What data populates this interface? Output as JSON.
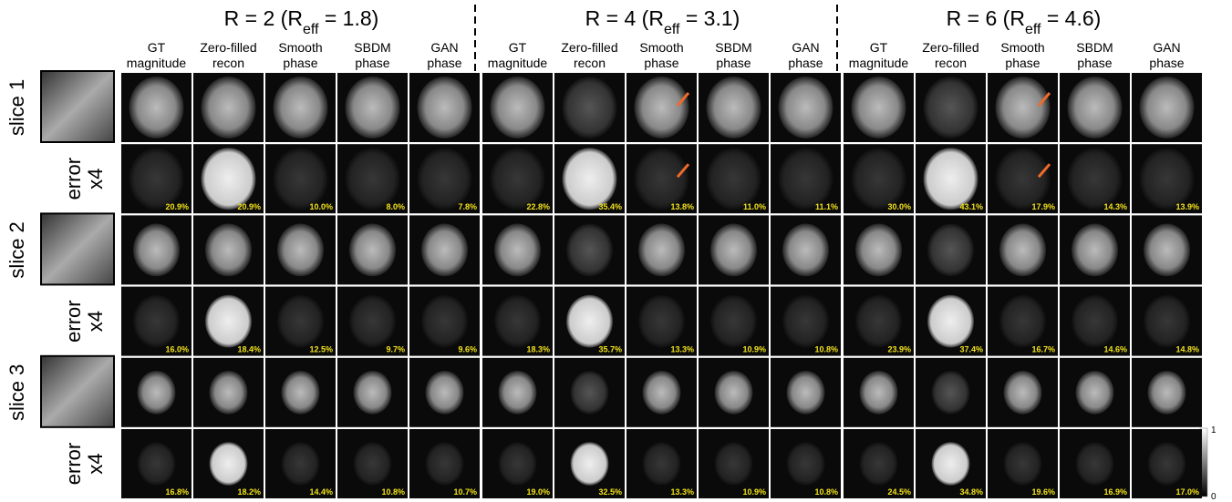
{
  "groups": [
    {
      "title": [
        "R = 2 (R",
        "eff",
        " = 1.8)"
      ],
      "columns": [
        [
          "GT",
          "magnitude"
        ],
        [
          "Zero-filled",
          "recon"
        ],
        [
          "Smooth",
          "phase"
        ],
        [
          "SBDM",
          "phase"
        ],
        [
          "GAN",
          "phase"
        ]
      ],
      "errors": [
        [
          "20.9%",
          "20.9%",
          "10.0%",
          "8.0%",
          "7.8%"
        ],
        [
          "16.0%",
          "18.4%",
          "12.5%",
          "9.7%",
          "9.6%"
        ],
        [
          "16.8%",
          "18.2%",
          "14.4%",
          "10.8%",
          "10.7%"
        ]
      ]
    },
    {
      "title": [
        "R = 4 (R",
        "eff",
        " = 3.1)"
      ],
      "columns": [
        [
          "GT",
          "magnitude"
        ],
        [
          "Zero-filled",
          "recon"
        ],
        [
          "Smooth",
          "phase"
        ],
        [
          "SBDM",
          "phase"
        ],
        [
          "GAN",
          "phase"
        ]
      ],
      "errors": [
        [
          "22.8%",
          "35.4%",
          "13.8%",
          "11.0%",
          "11.1%"
        ],
        [
          "18.3%",
          "35.7%",
          "13.3%",
          "10.9%",
          "10.8%"
        ],
        [
          "19.0%",
          "32.5%",
          "13.3%",
          "10.9%",
          "10.8%"
        ]
      ]
    },
    {
      "title": [
        "R = 6 (R",
        "eff",
        " = 4.6)"
      ],
      "columns": [
        [
          "GT",
          "magnitude"
        ],
        [
          "Zero-filled",
          "recon"
        ],
        [
          "Smooth",
          "phase"
        ],
        [
          "SBDM",
          "phase"
        ],
        [
          "GAN",
          "phase"
        ]
      ],
      "errors": [
        [
          "30.0%",
          "43.1%",
          "17.9%",
          "14.3%",
          "13.9%"
        ],
        [
          "23.9%",
          "37.4%",
          "16.7%",
          "14.6%",
          "14.8%"
        ],
        [
          "24.5%",
          "34.8%",
          "19.6%",
          "16.9%",
          "17.0%"
        ]
      ]
    }
  ],
  "rows": [
    {
      "slice": "slice 1",
      "error": "error",
      "scale": "x4"
    },
    {
      "slice": "slice 2",
      "error": "error",
      "scale": "x4"
    },
    {
      "slice": "slice 3",
      "error": "error",
      "scale": "x4"
    }
  ],
  "colorbar": {
    "max": "1",
    "min": "0"
  }
}
